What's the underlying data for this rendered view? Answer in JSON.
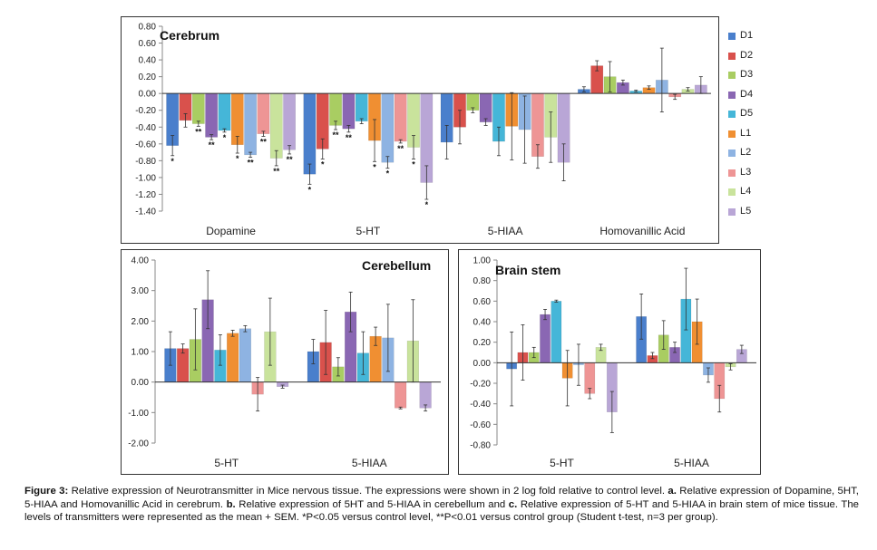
{
  "caption": {
    "figure_label": "Figure 3:",
    "text_1": " Relative expression of Neurotransmitter in Mice nervous tissue. The expressions were shown in 2 log fold relative to control level. ",
    "a": "a.",
    "text_2": " Relative expression of Dopamine, 5HT, 5-HIAA and Homovanillic Acid in cerebrum. ",
    "b": "b.",
    "text_3": " Relative expression of 5HT and 5-HIAA in cerebellum and ",
    "c": "c.",
    "text_4": " Relative expression of 5-HT and 5-HIAA in brain stem of mice tissue. The levels of transmitters were represented as the mean + SEM. *P<0.05 versus control level, **P<0.01 versus control group (Student t-test, n=3 per group)."
  },
  "legend": [
    {
      "name": "D1",
      "color": "#4a7fcc"
    },
    {
      "name": "D2",
      "color": "#d9514c"
    },
    {
      "name": "D3",
      "color": "#a9cd62"
    },
    {
      "name": "D4",
      "color": "#8a67b3"
    },
    {
      "name": "D5",
      "color": "#45b6d8"
    },
    {
      "name": "L1",
      "color": "#f08f32"
    },
    {
      "name": "L2",
      "color": "#8eb3e2"
    },
    {
      "name": "L3",
      "color": "#ee9595"
    },
    {
      "name": "L4",
      "color": "#c9e39c"
    },
    {
      "name": "L5",
      "color": "#b9a6d6"
    }
  ],
  "chart_data": [
    {
      "type": "bar",
      "title": "Cerebrum",
      "categories": [
        "Dopamine",
        "5-HT",
        "5-HIAA",
        "Homovanillic Acid"
      ],
      "ylim": [
        -1.4,
        0.8
      ],
      "ytick_step": 0.2,
      "ytick_decimals": 2,
      "series": [
        {
          "name": "D1",
          "values": [
            -0.62,
            -0.96,
            -0.58,
            0.05
          ],
          "errors": [
            0.12,
            0.12,
            0.2,
            0.03
          ],
          "sig": [
            "*",
            "*",
            "",
            ""
          ]
        },
        {
          "name": "D2",
          "values": [
            -0.32,
            -0.66,
            -0.4,
            0.33
          ],
          "errors": [
            0.08,
            0.12,
            0.2,
            0.06
          ],
          "sig": [
            "",
            "*",
            "",
            ""
          ]
        },
        {
          "name": "D3",
          "values": [
            -0.36,
            -0.38,
            -0.2,
            0.2
          ],
          "errors": [
            0.03,
            0.05,
            0.03,
            0.18
          ],
          "sig": [
            "**",
            "**",
            "",
            ""
          ]
        },
        {
          "name": "D4",
          "values": [
            -0.52,
            -0.42,
            -0.34,
            0.13
          ],
          "errors": [
            0.03,
            0.04,
            0.04,
            0.03
          ],
          "sig": [
            "**",
            "**",
            "",
            ""
          ]
        },
        {
          "name": "D5",
          "values": [
            -0.44,
            -0.33,
            -0.57,
            0.03
          ],
          "errors": [
            0.02,
            0.03,
            0.17,
            0.01
          ],
          "sig": [
            "*",
            "",
            "",
            ""
          ]
        },
        {
          "name": "L1",
          "values": [
            -0.61,
            -0.56,
            -0.39,
            0.07
          ],
          "errors": [
            0.1,
            0.25,
            0.4,
            0.02
          ],
          "sig": [
            "*",
            "*",
            "",
            ""
          ]
        },
        {
          "name": "L2",
          "values": [
            -0.73,
            -0.82,
            -0.43,
            0.16
          ],
          "errors": [
            0.03,
            0.07,
            0.4,
            0.38
          ],
          "sig": [
            "**",
            "*",
            "",
            ""
          ]
        },
        {
          "name": "L3",
          "values": [
            -0.48,
            -0.57,
            -0.75,
            -0.04
          ],
          "errors": [
            0.03,
            0.02,
            0.14,
            0.03
          ],
          "sig": [
            "**",
            "**",
            "",
            ""
          ]
        },
        {
          "name": "L4",
          "values": [
            -0.77,
            -0.64,
            -0.52,
            0.05
          ],
          "errors": [
            0.09,
            0.14,
            0.3,
            0.02
          ],
          "sig": [
            "**",
            "*",
            "",
            ""
          ]
        },
        {
          "name": "L5",
          "values": [
            -0.67,
            -1.06,
            -0.82,
            0.1
          ],
          "errors": [
            0.05,
            0.2,
            0.22,
            0.1
          ],
          "sig": [
            "**",
            "*",
            "",
            ""
          ]
        }
      ]
    },
    {
      "type": "bar",
      "title": "Cerebellum",
      "categories": [
        "5-HT",
        "5-HIAA"
      ],
      "ylim": [
        -2,
        4
      ],
      "ytick_step": 1,
      "ytick_decimals": 2,
      "series": [
        {
          "name": "D1",
          "values": [
            1.1,
            1.0
          ],
          "errors": [
            0.55,
            0.4
          ]
        },
        {
          "name": "D2",
          "values": [
            1.1,
            1.3
          ],
          "errors": [
            0.15,
            1.05
          ]
        },
        {
          "name": "D3",
          "values": [
            1.4,
            0.5
          ],
          "errors": [
            1.0,
            0.3
          ]
        },
        {
          "name": "D4",
          "values": [
            2.7,
            2.3
          ],
          "errors": [
            0.95,
            0.65
          ]
        },
        {
          "name": "D5",
          "values": [
            1.05,
            0.95
          ],
          "errors": [
            0.5,
            0.7
          ]
        },
        {
          "name": "L1",
          "values": [
            1.6,
            1.5
          ],
          "errors": [
            0.1,
            0.3
          ]
        },
        {
          "name": "L2",
          "values": [
            1.75,
            1.45
          ],
          "errors": [
            0.1,
            1.1
          ]
        },
        {
          "name": "L3",
          "values": [
            -0.4,
            -0.85
          ],
          "errors": [
            0.55,
            0.03
          ]
        },
        {
          "name": "L4",
          "values": [
            1.65,
            1.35
          ],
          "errors": [
            1.1,
            1.35
          ]
        },
        {
          "name": "L5",
          "values": [
            -0.15,
            -0.85
          ],
          "errors": [
            0.05,
            0.1
          ]
        }
      ]
    },
    {
      "type": "bar",
      "title": "Brain stem",
      "categories": [
        "5-HT",
        "5-HIAA"
      ],
      "ylim": [
        -0.8,
        1.0
      ],
      "ytick_step": 0.2,
      "ytick_decimals": 2,
      "series": [
        {
          "name": "D1",
          "values": [
            -0.06,
            0.45
          ],
          "errors": [
            0.36,
            0.22
          ]
        },
        {
          "name": "D2",
          "values": [
            0.1,
            0.07
          ],
          "errors": [
            0.27,
            0.03
          ]
        },
        {
          "name": "D3",
          "values": [
            0.1,
            0.27
          ],
          "errors": [
            0.05,
            0.14
          ]
        },
        {
          "name": "D4",
          "values": [
            0.47,
            0.15
          ],
          "errors": [
            0.05,
            0.05
          ]
        },
        {
          "name": "D5",
          "values": [
            0.6,
            0.62
          ],
          "errors": [
            0.01,
            0.3
          ]
        },
        {
          "name": "L1",
          "values": [
            -0.15,
            0.4
          ],
          "errors": [
            0.27,
            0.22
          ]
        },
        {
          "name": "L2",
          "values": [
            -0.02,
            -0.12
          ],
          "errors": [
            0.2,
            0.07
          ]
        },
        {
          "name": "L3",
          "values": [
            -0.3,
            -0.35
          ],
          "errors": [
            0.05,
            0.13
          ]
        },
        {
          "name": "L4",
          "values": [
            0.15,
            -0.04
          ],
          "errors": [
            0.03,
            0.03
          ]
        },
        {
          "name": "L5",
          "values": [
            -0.48,
            0.13
          ],
          "errors": [
            0.2,
            0.04
          ]
        }
      ]
    }
  ]
}
